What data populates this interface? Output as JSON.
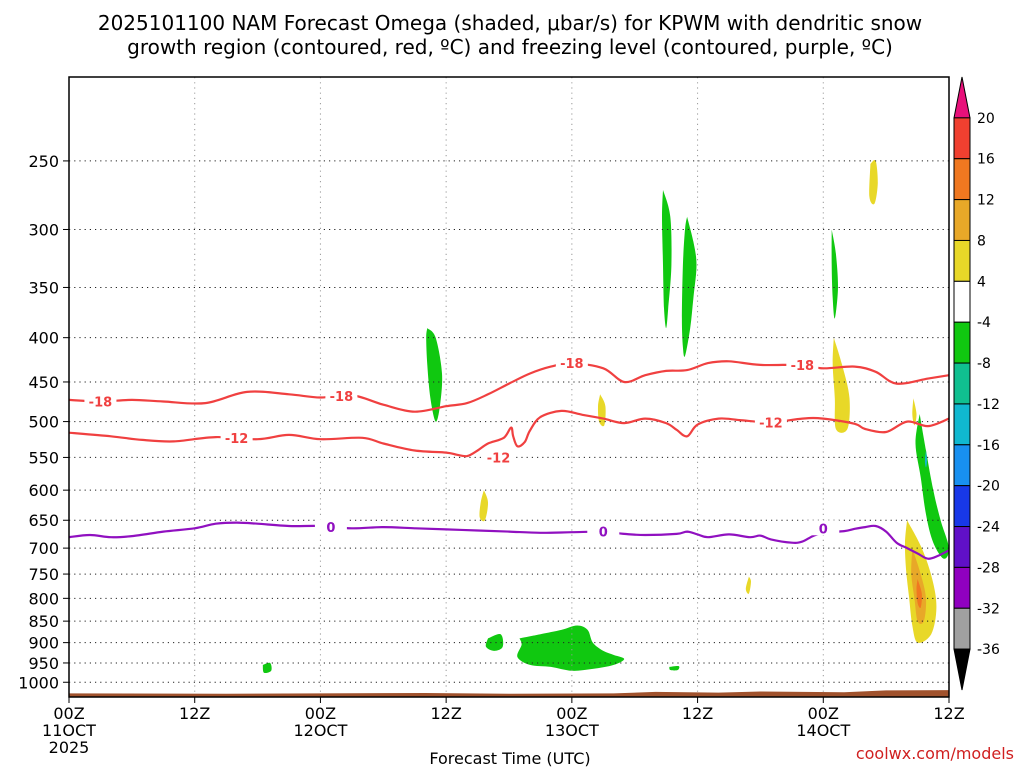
{
  "chart_data": {
    "type": "time-height section",
    "title_line1": "2025101100 NAM Forecast Omega (shaded, μbar/s) for KPWM with dendritic snow",
    "title_line2": "growth region (contoured, red, ºC) and freezing level (contoured, purple, ºC)",
    "xlabel": "Forecast Time (UTC)",
    "credit": "coolwx.com/models",
    "x_ticks": [
      {
        "hour": 0,
        "label1": "00Z",
        "label2": "11OCT",
        "label3": "2025"
      },
      {
        "hour": 12,
        "label1": "12Z",
        "label2": "",
        "label3": ""
      },
      {
        "hour": 24,
        "label1": "00Z",
        "label2": "12OCT",
        "label3": ""
      },
      {
        "hour": 36,
        "label1": "12Z",
        "label2": "",
        "label3": ""
      },
      {
        "hour": 48,
        "label1": "00Z",
        "label2": "13OCT",
        "label3": ""
      },
      {
        "hour": 60,
        "label1": "12Z",
        "label2": "",
        "label3": ""
      },
      {
        "hour": 72,
        "label1": "00Z",
        "label2": "14OCT",
        "label3": ""
      },
      {
        "hour": 84,
        "label1": "12Z",
        "label2": "",
        "label3": ""
      }
    ],
    "xlim_hours": [
      0,
      84
    ],
    "y_ticks": [
      250,
      300,
      350,
      400,
      450,
      500,
      550,
      600,
      650,
      700,
      750,
      800,
      850,
      900,
      950,
      1000
    ],
    "ylim_hPa": [
      1040,
      200
    ],
    "colorbar": {
      "labels": [
        "20",
        "16",
        "12",
        "8",
        "4",
        "-4",
        "-8",
        "-12",
        "-16",
        "-20",
        "-24",
        "-28",
        "-32",
        "-36"
      ],
      "colors": [
        "#e8107a",
        "#f04030",
        "#f07820",
        "#e8a828",
        "#e8d828",
        "#ffffff",
        "#10c810",
        "#10c090",
        "#10b8d0",
        "#1890f0",
        "#1838e8",
        "#6010c8",
        "#9000c0",
        "#a0a0a0",
        "#000000"
      ]
    },
    "isotherms": [
      {
        "name": "-18",
        "color": "#f04040",
        "label": "-18",
        "points": [
          [
            0,
            472
          ],
          [
            3,
            474
          ],
          [
            6,
            472
          ],
          [
            9,
            474
          ],
          [
            13,
            476
          ],
          [
            17,
            462
          ],
          [
            21,
            465
          ],
          [
            24,
            469
          ],
          [
            27,
            466
          ],
          [
            30,
            478
          ],
          [
            33,
            487
          ],
          [
            36,
            480
          ],
          [
            38,
            476
          ],
          [
            40,
            465
          ],
          [
            42,
            452
          ],
          [
            44,
            440
          ],
          [
            46,
            432
          ],
          [
            48,
            428
          ],
          [
            51,
            434
          ],
          [
            53,
            450
          ],
          [
            55,
            442
          ],
          [
            57,
            437
          ],
          [
            59,
            436
          ],
          [
            61,
            428
          ],
          [
            63,
            426
          ],
          [
            66,
            430
          ],
          [
            70,
            430
          ],
          [
            72,
            434
          ],
          [
            75,
            432
          ],
          [
            77,
            438
          ],
          [
            79,
            452
          ],
          [
            82,
            446
          ],
          [
            84,
            442
          ]
        ],
        "label_positions": [
          [
            3,
            474
          ],
          [
            26,
            467
          ],
          [
            48,
            428
          ],
          [
            70,
            430
          ]
        ]
      },
      {
        "name": "-12",
        "color": "#f04040",
        "label": "-12",
        "points": [
          [
            0,
            515
          ],
          [
            4,
            520
          ],
          [
            7,
            525
          ],
          [
            10,
            527
          ],
          [
            14,
            521
          ],
          [
            18,
            524
          ],
          [
            21,
            518
          ],
          [
            24,
            524
          ],
          [
            28,
            522
          ],
          [
            30,
            530
          ],
          [
            33,
            540
          ],
          [
            36,
            543
          ],
          [
            37,
            546
          ],
          [
            38,
            548
          ],
          [
            39,
            540
          ],
          [
            40,
            530
          ],
          [
            41.5,
            522
          ],
          [
            42.2,
            508
          ],
          [
            42.4,
            520
          ],
          [
            42.8,
            534
          ],
          [
            43.5,
            528
          ],
          [
            44,
            512
          ],
          [
            45,
            494
          ],
          [
            47,
            486
          ],
          [
            49,
            491
          ],
          [
            51,
            496
          ],
          [
            53,
            502
          ],
          [
            55,
            496
          ],
          [
            57,
            502
          ],
          [
            58,
            511
          ],
          [
            59,
            520
          ],
          [
            60,
            504
          ],
          [
            62,
            496
          ],
          [
            64,
            498
          ],
          [
            67,
            501
          ],
          [
            70,
            496
          ],
          [
            72,
            496
          ],
          [
            75,
            503
          ],
          [
            76,
            510
          ],
          [
            78,
            514
          ],
          [
            80,
            500
          ],
          [
            82,
            506
          ],
          [
            84,
            496
          ]
        ],
        "label_positions": [
          [
            16,
            522
          ],
          [
            41,
            550
          ],
          [
            67,
            501
          ]
        ]
      },
      {
        "name": "0",
        "color": "#9010c0",
        "label": "0",
        "points": [
          [
            0,
            680
          ],
          [
            2,
            676
          ],
          [
            4,
            680
          ],
          [
            6,
            678
          ],
          [
            9,
            670
          ],
          [
            12,
            664
          ],
          [
            14,
            656
          ],
          [
            16,
            654
          ],
          [
            18,
            656
          ],
          [
            21,
            660
          ],
          [
            24,
            660
          ],
          [
            27,
            664
          ],
          [
            30,
            662
          ],
          [
            33,
            664
          ],
          [
            36,
            666
          ],
          [
            39,
            668
          ],
          [
            42,
            670
          ],
          [
            45,
            672
          ],
          [
            48,
            671
          ],
          [
            51,
            670
          ],
          [
            53,
            674
          ],
          [
            55,
            676
          ],
          [
            58,
            674
          ],
          [
            59,
            670
          ],
          [
            60,
            675
          ],
          [
            61,
            680
          ],
          [
            63,
            675
          ],
          [
            65,
            680
          ],
          [
            66,
            677
          ],
          [
            67,
            684
          ],
          [
            69,
            690
          ],
          [
            70,
            688
          ],
          [
            71,
            678
          ],
          [
            72,
            672
          ],
          [
            74,
            669
          ],
          [
            75,
            665
          ],
          [
            76,
            662
          ],
          [
            77,
            660
          ],
          [
            78,
            670
          ],
          [
            79,
            690
          ],
          [
            80,
            700
          ],
          [
            81,
            710
          ],
          [
            82,
            720
          ],
          [
            83,
            714
          ],
          [
            84,
            704
          ]
        ],
        "label_positions": [
          [
            25,
            662
          ],
          [
            51,
            670
          ],
          [
            72,
            664
          ]
        ]
      }
    ],
    "shaded_regions": [
      {
        "value": "-4 to -8",
        "color": "#10c810",
        "path_hours_hPa": [
          [
            34.2,
            390
          ],
          [
            35,
            400
          ],
          [
            35.6,
            440
          ],
          [
            35.4,
            480
          ],
          [
            35,
            500
          ],
          [
            34.5,
            470
          ],
          [
            34.2,
            430
          ],
          [
            34.1,
            400
          ]
        ]
      },
      {
        "value": "-4 to -8",
        "color": "#10c810",
        "path_hours_hPa": [
          [
            56.7,
            270
          ],
          [
            57.4,
            290
          ],
          [
            57.5,
            330
          ],
          [
            57.2,
            370
          ],
          [
            57,
            390
          ],
          [
            56.8,
            370
          ],
          [
            56.7,
            330
          ],
          [
            56.6,
            290
          ]
        ]
      },
      {
        "value": "-4 to -8",
        "color": "#10c810",
        "path_hours_hPa": [
          [
            59,
            290
          ],
          [
            59.6,
            310
          ],
          [
            59.9,
            330
          ],
          [
            59.6,
            360
          ],
          [
            59.3,
            390
          ],
          [
            58.8,
            420
          ],
          [
            58.6,
            410
          ],
          [
            58.5,
            380
          ],
          [
            58.6,
            330
          ],
          [
            58.8,
            300
          ]
        ]
      },
      {
        "value": "-4 to -8",
        "color": "#10c810",
        "path_hours_hPa": [
          [
            72.8,
            300
          ],
          [
            73.2,
            320
          ],
          [
            73.4,
            350
          ],
          [
            73.1,
            380
          ],
          [
            72.9,
            360
          ],
          [
            72.8,
            330
          ]
        ]
      },
      {
        "value": "-4 to -8",
        "color": "#10c810",
        "path_hours_hPa": [
          [
            81.2,
            490
          ],
          [
            81.8,
            540
          ],
          [
            82.5,
            600
          ],
          [
            83.2,
            650
          ],
          [
            84,
            700
          ],
          [
            83.5,
            720
          ],
          [
            82.5,
            690
          ],
          [
            81.8,
            640
          ],
          [
            81.3,
            580
          ],
          [
            80.8,
            530
          ]
        ]
      },
      {
        "value": "-8 to -12",
        "color": "#10b8d0",
        "path_hours_hPa": [
          [
            81.8,
            540
          ],
          [
            81.9,
            555
          ],
          [
            81.8,
            565
          ],
          [
            81.7,
            555
          ]
        ]
      },
      {
        "value": "-4 to -8",
        "color": "#10c810",
        "path_hours_hPa": [
          [
            43,
            890
          ],
          [
            45,
            880
          ],
          [
            47,
            870
          ],
          [
            48.5,
            860
          ],
          [
            49.5,
            870
          ],
          [
            50,
            900
          ],
          [
            51,
            920
          ],
          [
            52,
            930
          ],
          [
            53,
            940
          ],
          [
            52,
            955
          ],
          [
            50,
            965
          ],
          [
            48,
            970
          ],
          [
            46,
            960
          ],
          [
            44,
            955
          ],
          [
            42.8,
            935
          ],
          [
            43.2,
            905
          ]
        ]
      },
      {
        "value": "-4 to -8",
        "color": "#10c810",
        "path_hours_hPa": [
          [
            40,
            890
          ],
          [
            41.2,
            880
          ],
          [
            41.4,
            910
          ],
          [
            40.6,
            920
          ],
          [
            39.8,
            910
          ]
        ]
      },
      {
        "value": "-4 to -8",
        "color": "#10c810",
        "path_hours_hPa": [
          [
            18.5,
            955
          ],
          [
            19.2,
            950
          ],
          [
            19.3,
            970
          ],
          [
            18.6,
            975
          ]
        ]
      },
      {
        "value": "-4 to -8",
        "color": "#10c810",
        "path_hours_hPa": [
          [
            57.3,
            960
          ],
          [
            58.2,
            958
          ],
          [
            58.1,
            968
          ],
          [
            57.4,
            968
          ]
        ]
      },
      {
        "value": "4 to 8",
        "color": "#e8d828",
        "path_hours_hPa": [
          [
            76.5,
            252
          ],
          [
            77,
            250
          ],
          [
            77.2,
            265
          ],
          [
            76.9,
            280
          ],
          [
            76.4,
            275
          ]
        ]
      },
      {
        "value": "4 to 8",
        "color": "#e8d828",
        "path_hours_hPa": [
          [
            73,
            400
          ],
          [
            73.8,
            430
          ],
          [
            74.5,
            470
          ],
          [
            74.3,
            510
          ],
          [
            73.2,
            510
          ],
          [
            73.1,
            470
          ],
          [
            72.9,
            430
          ]
        ]
      },
      {
        "value": "4 to 8",
        "color": "#e8d828",
        "path_hours_hPa": [
          [
            50.7,
            465
          ],
          [
            51.2,
            480
          ],
          [
            51.1,
            505
          ],
          [
            50.6,
            500
          ],
          [
            50.5,
            480
          ]
        ]
      },
      {
        "value": "4 to 8",
        "color": "#e8d828",
        "path_hours_hPa": [
          [
            39.6,
            600
          ],
          [
            40,
            620
          ],
          [
            39.7,
            650
          ],
          [
            39.2,
            645
          ],
          [
            39.3,
            620
          ]
        ]
      },
      {
        "value": "4 to 8",
        "color": "#e8d828",
        "path_hours_hPa": [
          [
            80.6,
            470
          ],
          [
            80.9,
            490
          ],
          [
            80.7,
            505
          ],
          [
            80.5,
            490
          ]
        ]
      },
      {
        "value": "4 to 8",
        "color": "#e8d828",
        "path_hours_hPa": [
          [
            64.9,
            755
          ],
          [
            65.1,
            765
          ],
          [
            64.9,
            790
          ],
          [
            64.6,
            780
          ]
        ]
      },
      {
        "value": "4 to 8",
        "color": "#e8d828",
        "path_hours_hPa": [
          [
            80,
            650
          ],
          [
            81.4,
            700
          ],
          [
            82.4,
            760
          ],
          [
            82.8,
            820
          ],
          [
            82.3,
            880
          ],
          [
            81,
            900
          ],
          [
            80.5,
            860
          ],
          [
            80.2,
            800
          ],
          [
            79.9,
            740
          ],
          [
            79.8,
            690
          ]
        ]
      },
      {
        "value": "8 to 12",
        "color": "#e8a828",
        "path_hours_hPa": [
          [
            80.5,
            700
          ],
          [
            81.3,
            750
          ],
          [
            81.8,
            800
          ],
          [
            81.6,
            850
          ],
          [
            81,
            850
          ],
          [
            80.7,
            800
          ],
          [
            80.4,
            750
          ]
        ]
      },
      {
        "value": "12 to 16",
        "color": "#f07820",
        "path_hours_hPa": [
          [
            81,
            760
          ],
          [
            81.4,
            790
          ],
          [
            81.3,
            820
          ],
          [
            81,
            810
          ],
          [
            80.9,
            780
          ]
        ]
      }
    ],
    "surface": {
      "color": "#a0522d",
      "description": "terrain below surface pressure"
    }
  }
}
